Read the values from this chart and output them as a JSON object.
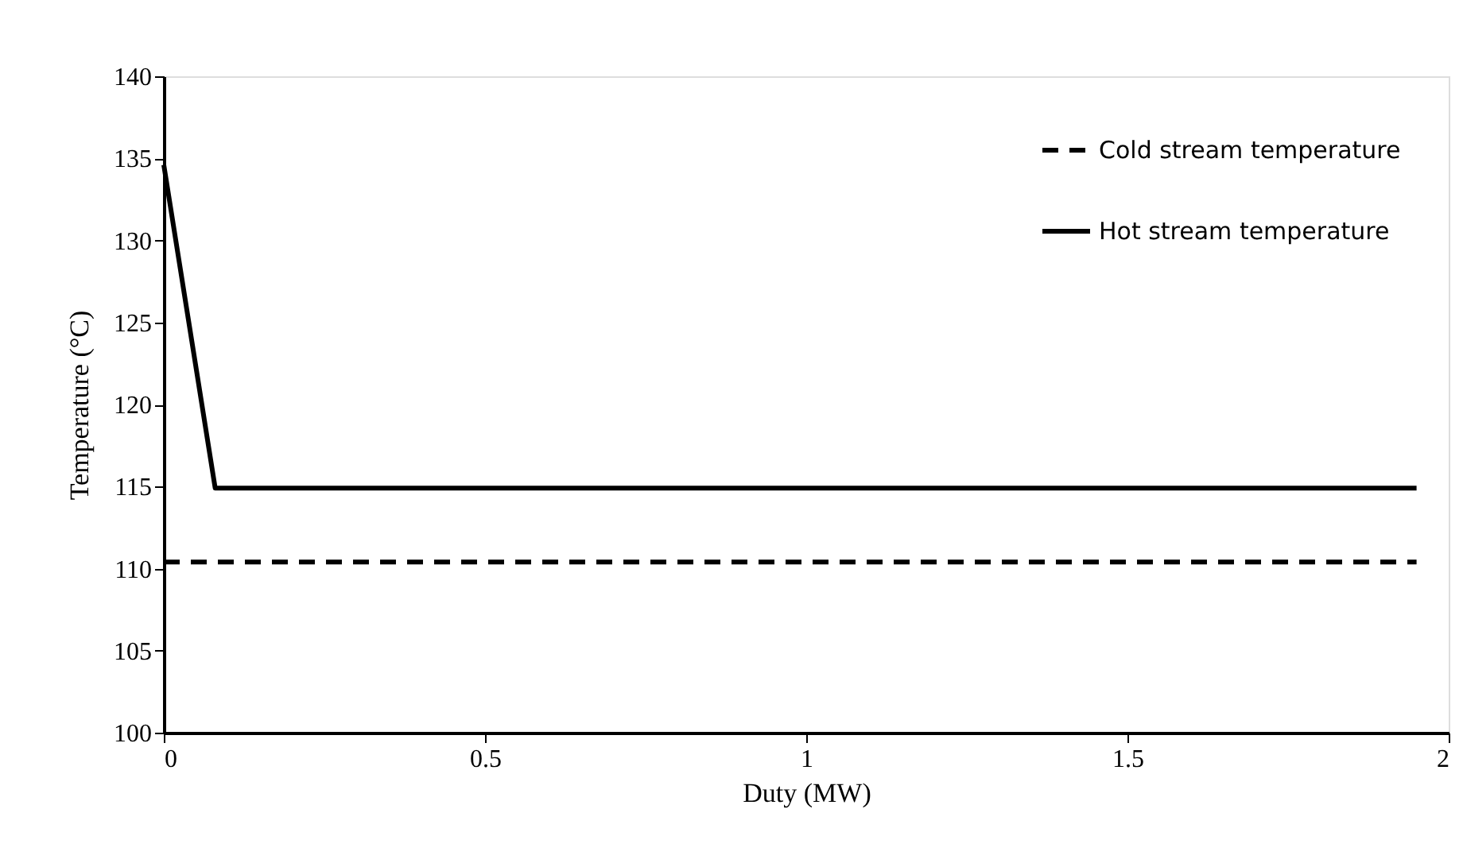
{
  "chart_data": {
    "type": "line",
    "xlabel": "Duty (MW)",
    "ylabel": "Temperature (°C)",
    "series": [
      {
        "name": "Cold stream temperature",
        "color": "#000000",
        "line_style": "dashed",
        "x": [
          0,
          1.95
        ],
        "values": [
          110.4,
          110.4
        ]
      },
      {
        "name": "Hot stream temperature",
        "color": "#000000",
        "line_style": "solid",
        "x": [
          0,
          0.08,
          1.95
        ],
        "values": [
          134.6,
          114.9,
          114.9
        ]
      }
    ],
    "xlim": [
      0,
      2
    ],
    "xticks": [
      0,
      0.5,
      1,
      1.5,
      2
    ],
    "ylim": [
      100,
      140
    ],
    "yticks": [
      100,
      105,
      110,
      115,
      120,
      125,
      130,
      135,
      140
    ],
    "grid": false,
    "legend": "top right",
    "marker": "none"
  }
}
